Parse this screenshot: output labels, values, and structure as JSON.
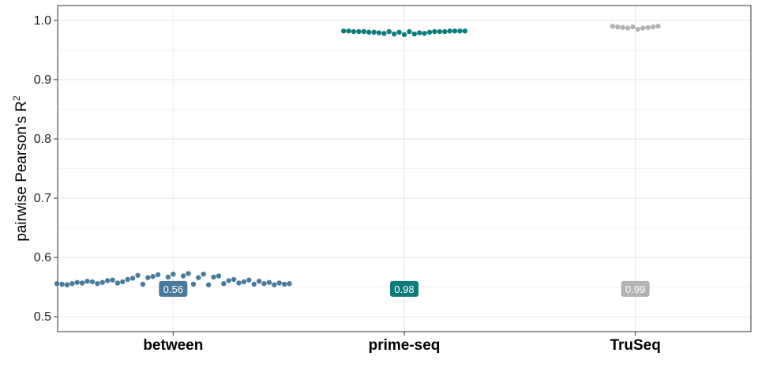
{
  "chart_data": {
    "type": "scatter",
    "subtype": "beeswarm",
    "title": "",
    "xlabel": "",
    "ylabel": "pairwise Pearson's R",
    "ylabel_superscript": "2",
    "ylim": [
      0.475,
      1.025
    ],
    "yticks": [
      0.5,
      0.6,
      0.7,
      0.8,
      0.9,
      1.0
    ],
    "ytick_labels": [
      "0.5",
      "0.6",
      "0.7",
      "0.8",
      "0.9",
      "1.0"
    ],
    "grid": true,
    "legend": "none",
    "categories": [
      "between",
      "prime-seq",
      "TruSeq"
    ],
    "series": [
      {
        "category": "between",
        "color": "#4a7a9b",
        "median_label": "0.56",
        "median": 0.56,
        "values": [
          0.556,
          0.555,
          0.554,
          0.556,
          0.558,
          0.557,
          0.56,
          0.559,
          0.556,
          0.558,
          0.561,
          0.562,
          0.557,
          0.559,
          0.563,
          0.565,
          0.57,
          0.555,
          0.566,
          0.568,
          0.571,
          0.554,
          0.567,
          0.572,
          0.556,
          0.569,
          0.573,
          0.555,
          0.566,
          0.572,
          0.554,
          0.567,
          0.569,
          0.556,
          0.561,
          0.563,
          0.557,
          0.559,
          0.562,
          0.555,
          0.56,
          0.556,
          0.558,
          0.554,
          0.557,
          0.555,
          0.556
        ]
      },
      {
        "category": "prime-seq",
        "color": "#0e7c7b",
        "median_label": "0.98",
        "median": 0.98,
        "values": [
          0.982,
          0.982,
          0.981,
          0.981,
          0.981,
          0.98,
          0.98,
          0.979,
          0.978,
          0.981,
          0.977,
          0.98,
          0.976,
          0.981,
          0.977,
          0.979,
          0.978,
          0.98,
          0.981,
          0.981,
          0.981,
          0.982,
          0.982,
          0.982,
          0.982
        ]
      },
      {
        "category": "TruSeq",
        "color": "#b3b3b3",
        "median_label": "0.99",
        "median": 0.99,
        "values": [
          0.99,
          0.989,
          0.988,
          0.987,
          0.989,
          0.985,
          0.987,
          0.988,
          0.989,
          0.99
        ]
      }
    ]
  }
}
